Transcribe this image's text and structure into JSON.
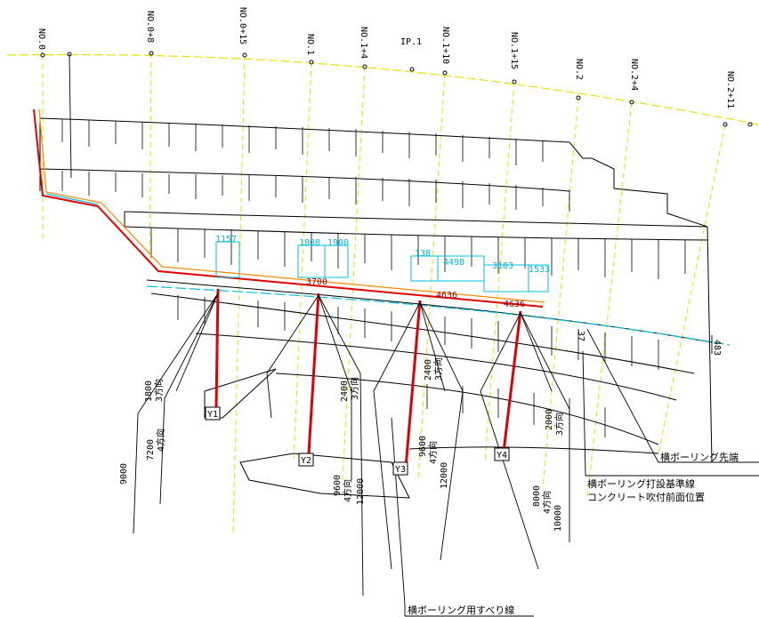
{
  "colors": {
    "centerline": "#e8e000",
    "cyan": "#00c0e0",
    "boring": "#e00000",
    "slope": "#000000",
    "orange": "#ff8800"
  },
  "stations": [
    "NO.0",
    "NO.0+8",
    "NO.0+15",
    "NO.1",
    "NO.1+4",
    "IP.1",
    "NO.1+10",
    "NO.1+15",
    "NO.2",
    "NO.2+4",
    "NO.2+11"
  ],
  "cyan_dims": [
    "1157",
    "1808",
    "1900",
    "138",
    "4498",
    "3103",
    "1533"
  ],
  "red_dims": [
    "3700",
    "4636",
    "4636"
  ],
  "right_dims": [
    "37",
    "483"
  ],
  "borings": [
    {
      "id": "Y1",
      "short_len": "1800",
      "short_dir": "3方向",
      "mid_len": "7200",
      "mid_dir": "4方向",
      "long_len": "9000"
    },
    {
      "id": "Y2",
      "short_len": "2400",
      "short_dir": "3方向",
      "mid_len": "9600",
      "mid_dir": "4方向",
      "long_len": "12000"
    },
    {
      "id": "Y3",
      "short_len": "2400",
      "short_dir": "3方向",
      "mid_len": "9600",
      "mid_dir": "4方向",
      "long_len": "12000"
    },
    {
      "id": "Y4",
      "short_len": "2000",
      "short_dir": "3方向",
      "mid_len": "8000",
      "mid_dir": "4方向",
      "long_len": "10000"
    }
  ],
  "labels": {
    "boring_tip": "横ボーリング先端",
    "base_line": "横ボーリング打設基準線",
    "concrete_face": "コンクリート吹付前面位置",
    "slip_line": "横ボーリング用すべり線"
  }
}
